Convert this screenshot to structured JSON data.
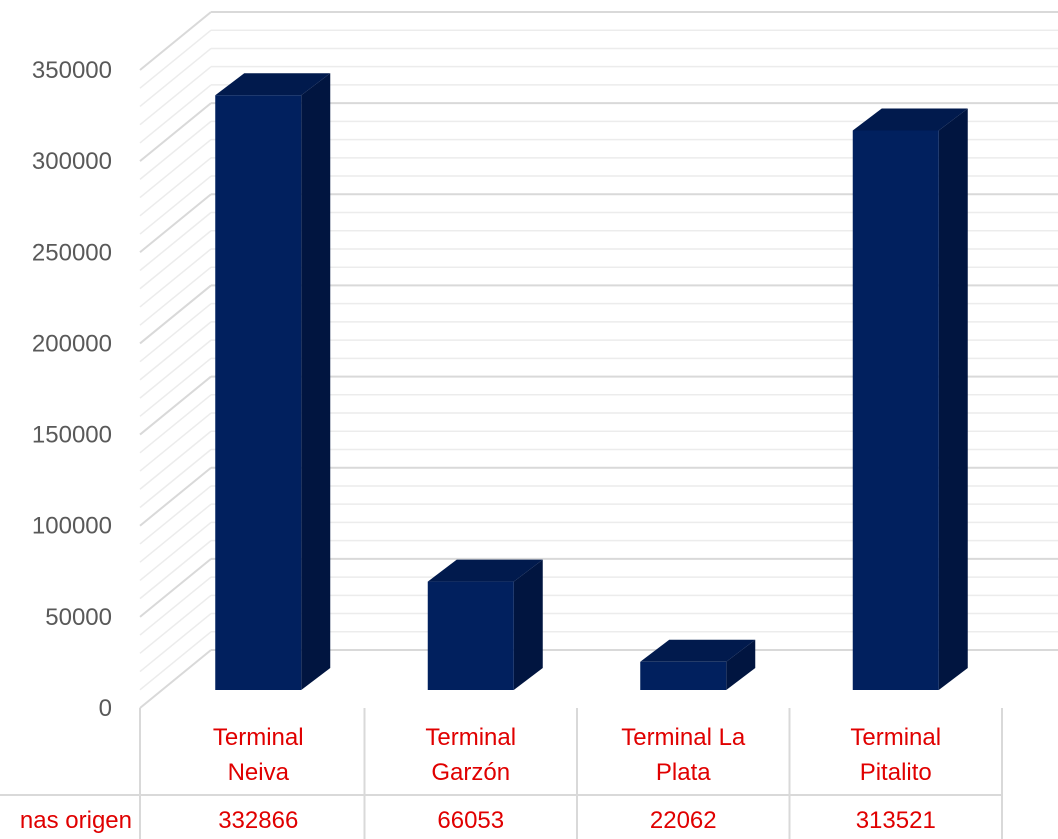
{
  "chart_data": {
    "type": "bar",
    "style": "3d-column",
    "categories": [
      [
        "Terminal",
        "Neiva"
      ],
      [
        "Terminal",
        "Garzón"
      ],
      [
        "Terminal La",
        "Plata"
      ],
      [
        "Terminal",
        "Pitalito"
      ]
    ],
    "series": [
      {
        "name": "nas origen",
        "values": [
          332866,
          66053,
          22062,
          313521
        ]
      }
    ],
    "yticks": [
      "0",
      "50000",
      "100000",
      "150000",
      "200000",
      "250000",
      "300000",
      "350000"
    ],
    "ylim": [
      0,
      350000
    ],
    "grid": true,
    "data_table": true,
    "colors": {
      "bar_front": "#01205e",
      "bar_side": "#011540",
      "bar_top": "#011a4d",
      "grid_major": "#d9d9d9",
      "grid_minor": "#ececec",
      "category_text": "#e00000",
      "tick_text": "#595959"
    }
  }
}
